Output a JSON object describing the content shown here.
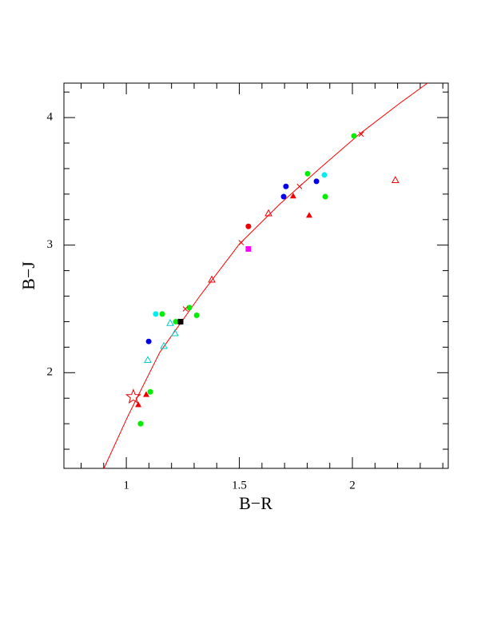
{
  "chart_data": {
    "type": "scatter",
    "x_label": "B−R",
    "y_label": "B−J",
    "xlim": [
      0.724,
      2.424
    ],
    "ylim": [
      1.25,
      4.27
    ],
    "xticks": [
      1,
      1.5,
      2
    ],
    "xminorticks": [
      0.8,
      0.9,
      1.1,
      1.2,
      1.3,
      1.4,
      1.6,
      1.7,
      1.8,
      1.9,
      2.1,
      2.2,
      2.3,
      2.4
    ],
    "yticks": [
      2,
      3,
      4
    ],
    "yminorticks": [
      1.4,
      1.6,
      1.8,
      2.2,
      2.4,
      2.6,
      2.8,
      3.2,
      3.4,
      3.6,
      3.8,
      4.2
    ],
    "series": [
      {
        "marker": "line",
        "color": "#ff0000",
        "x": [
          0.901,
          1.007,
          1.148,
          1.325,
          1.501,
          1.678,
          1.855,
          2.031,
          2.208,
          2.332
        ],
        "y": [
          1.25,
          1.66,
          2.16,
          2.6,
          3.01,
          3.32,
          3.6,
          3.87,
          4.11,
          4.27
        ]
      },
      {
        "marker": "circle",
        "color": "#00ee00",
        "x": [
          2.007,
          1.802,
          1.88,
          1.279,
          1.311,
          1.159,
          1.219,
          1.106,
          1.063
        ],
        "y": [
          3.856,
          3.56,
          3.38,
          2.51,
          2.45,
          2.46,
          2.4,
          1.85,
          1.6
        ]
      },
      {
        "marker": "circle",
        "color": "#0000ee",
        "x": [
          1.706,
          1.696,
          1.841,
          1.099
        ],
        "y": [
          3.46,
          3.38,
          3.5,
          2.245
        ]
      },
      {
        "marker": "circle",
        "color": "#00eeee",
        "x": [
          1.876,
          1.13
        ],
        "y": [
          3.55,
          2.46
        ]
      },
      {
        "marker": "circle",
        "color": "#ee0000",
        "x": [
          1.54
        ],
        "y": [
          3.147
        ]
      },
      {
        "marker": "square",
        "color": "#ff00ff",
        "x": [
          1.54
        ],
        "y": [
          2.97
        ]
      },
      {
        "marker": "square",
        "color": "#000000",
        "x": [
          1.24
        ],
        "y": [
          2.4
        ]
      },
      {
        "marker": "triangle",
        "color": "#ee0000",
        "x": [
          1.738,
          1.809,
          1.088,
          1.053
        ],
        "y": [
          3.386,
          3.235,
          1.83,
          1.75
        ]
      },
      {
        "marker": "open-triangle",
        "color": "#ee0000",
        "x": [
          2.19,
          1.629,
          1.378
        ],
        "y": [
          3.51,
          3.25,
          2.73
        ]
      },
      {
        "marker": "open-triangle",
        "color": "#00cccc",
        "x": [
          1.194,
          1.215,
          1.166,
          1.095
        ],
        "y": [
          2.39,
          2.31,
          2.21,
          2.1
        ]
      },
      {
        "marker": "cross",
        "color": "#ee0000",
        "x": [
          2.039,
          1.766,
          1.508,
          1.261
        ],
        "y": [
          3.87,
          3.46,
          3.02,
          2.5
        ]
      },
      {
        "marker": "star",
        "color": "#ee0000",
        "x": [
          1.031
        ],
        "y": [
          1.81
        ]
      }
    ]
  }
}
